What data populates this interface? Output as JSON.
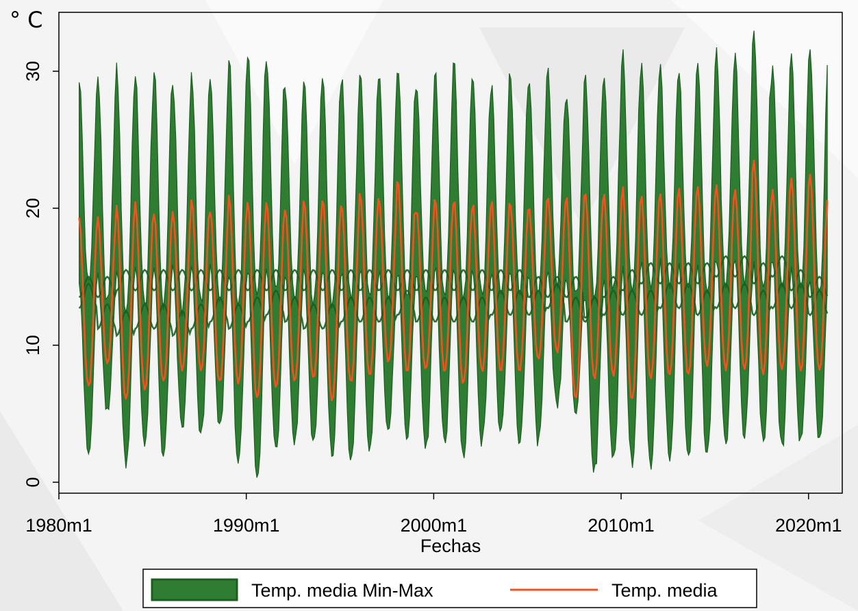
{
  "chart_data": {
    "type": "area",
    "unit_label": "° C",
    "xlabel": "Fechas",
    "ylabel": "",
    "x_ticks": [
      "1980m1",
      "1990m1",
      "2000m1",
      "2010m1",
      "2020m1"
    ],
    "y_ticks": [
      "0",
      "10",
      "20",
      "30"
    ],
    "x_range_years": [
      1980.0,
      2021.8
    ],
    "ylim": [
      -0.8,
      34.3
    ],
    "start": "1981m2",
    "end": "2021m1",
    "series": [
      {
        "name": "Temp. media Min-Max",
        "kind": "band",
        "color": "#2e7d32",
        "edge_color": "#1b5e20",
        "upper_peak_by_year": [
          29.5,
          29.5,
          30.2,
          29.5,
          30.0,
          29.0,
          30.0,
          29.2,
          31.0,
          31.5,
          31.0,
          28.5,
          29.8,
          29.8,
          29.5,
          30.2,
          29.5,
          30.5,
          29.0,
          30.0,
          30.5,
          29.8,
          29.0,
          30.0,
          29.5,
          30.0,
          28.5,
          30.0,
          30.0,
          31.5,
          30.5,
          30.2,
          30.0,
          30.5,
          31.5,
          31.5,
          33.0,
          30.5,
          31.5,
          31.8
        ],
        "upper_trough_by_year": [
          14.5,
          13.0,
          12.5,
          13.0,
          13.0,
          12.5,
          13.0,
          13.5,
          13.0,
          13.5,
          14.0,
          13.5,
          13.0,
          13.0,
          13.5,
          13.5,
          13.5,
          14.0,
          13.5,
          13.5,
          13.5,
          13.5,
          14.0,
          14.0,
          14.0,
          14.5,
          13.5,
          13.5,
          14.0,
          14.0,
          14.0,
          14.5,
          14.5,
          14.0,
          14.5,
          14.5,
          14.0,
          14.5,
          14.5,
          14.0
        ],
        "lower_peak_by_year": [
          15.0,
          15.0,
          15.5,
          15.5,
          15.5,
          15.5,
          15.5,
          15.5,
          15.5,
          15.5,
          15.5,
          15.5,
          15.5,
          15.5,
          15.5,
          15.5,
          15.5,
          15.5,
          15.5,
          15.5,
          15.5,
          15.5,
          15.5,
          15.5,
          15.0,
          15.0,
          15.0,
          13.5,
          15.0,
          15.5,
          16.0,
          16.0,
          16.0,
          16.0,
          16.5,
          16.5,
          16.0,
          16.5,
          15.5,
          15.0
        ],
        "lower_trough_by_year": [
          2.0,
          5.0,
          1.5,
          3.0,
          2.0,
          4.0,
          3.5,
          4.0,
          1.5,
          0.5,
          2.5,
          3.0,
          3.0,
          2.0,
          1.5,
          2.5,
          3.5,
          3.5,
          2.5,
          3.0,
          2.0,
          3.0,
          3.5,
          3.0,
          3.0,
          5.5,
          5.5,
          1.0,
          1.5,
          1.5,
          1.0,
          2.0,
          2.0,
          2.0,
          3.0,
          3.5,
          3.0,
          2.5,
          3.0,
          3.0
        ]
      },
      {
        "name": "Temp. media",
        "kind": "line",
        "color": "#f4511e",
        "peak_by_year": [
          19.3,
          19.3,
          20.3,
          20.3,
          19.6,
          19.8,
          20.6,
          19.8,
          20.8,
          20.5,
          20.5,
          19.8,
          20.5,
          20.7,
          20.4,
          21.1,
          20.8,
          22.0,
          20.0,
          20.7,
          20.7,
          20.3,
          20.5,
          20.5,
          20.2,
          21.0,
          20.8,
          21.3,
          21.0,
          21.5,
          21.0,
          21.2,
          21.5,
          21.6,
          21.7,
          21.4,
          23.6,
          21.3,
          22.2,
          22.6
        ],
        "trough_by_year": [
          7.0,
          8.8,
          6.0,
          6.9,
          7.3,
          8.2,
          8.2,
          7.3,
          7.3,
          6.2,
          6.9,
          7.3,
          7.5,
          6.0,
          7.3,
          7.8,
          8.8,
          8.2,
          8.2,
          8.2,
          7.3,
          8.2,
          8.2,
          8.2,
          9.0,
          9.5,
          6.0,
          7.7,
          7.8,
          6.0,
          7.6,
          7.7,
          7.9,
          8.5,
          8.3,
          8.2,
          7.9,
          8.3,
          8.2,
          8.2
        ],
        "start_value": 19.3,
        "end_value": 20.6
      }
    ],
    "legend": {
      "placement": "bottom",
      "entries": [
        "Temp. media Min-Max",
        "Temp. media"
      ]
    }
  }
}
